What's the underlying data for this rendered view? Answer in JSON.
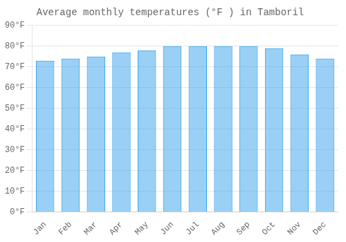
{
  "chart_data": {
    "type": "bar",
    "title": "Average monthly temperatures (°F ) in Tamboril",
    "categories": [
      "Jan",
      "Feb",
      "Mar",
      "Apr",
      "May",
      "Jun",
      "Jul",
      "Aug",
      "Sep",
      "Oct",
      "Nov",
      "Dec"
    ],
    "values": [
      73,
      74,
      75,
      77,
      78,
      80,
      80,
      80,
      80,
      79,
      76,
      74
    ],
    "ylim": [
      0,
      90
    ],
    "yticks": [
      {
        "value": 0,
        "label": "0°F"
      },
      {
        "value": 10,
        "label": "10°F"
      },
      {
        "value": 20,
        "label": "20°F"
      },
      {
        "value": 30,
        "label": "30°F"
      },
      {
        "value": 40,
        "label": "40°F"
      },
      {
        "value": 50,
        "label": "50°F"
      },
      {
        "value": 60,
        "label": "60°F"
      },
      {
        "value": 70,
        "label": "70°F"
      },
      {
        "value": 80,
        "label": "80°F"
      },
      {
        "value": 90,
        "label": "90°F"
      }
    ],
    "grid": true
  }
}
